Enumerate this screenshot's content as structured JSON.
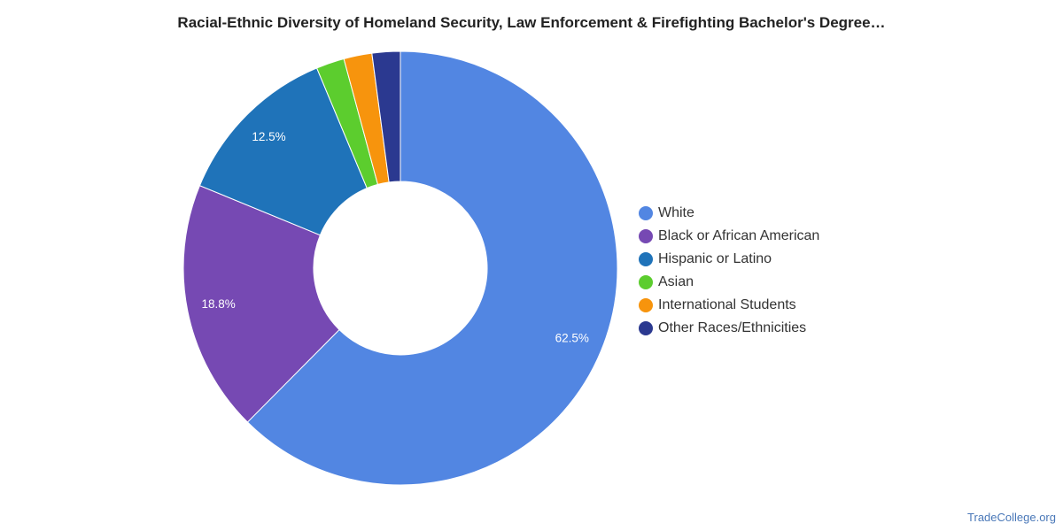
{
  "chart_data": {
    "type": "pie",
    "donut": true,
    "title": "Racial-Ethnic Diversity of Homeland Security, Law Enforcement & Firefighting Bachelor's Degree…",
    "legend_position": "right",
    "categories": [
      "White",
      "Black or African American",
      "Hispanic or Latino",
      "Asian",
      "International Students",
      "Other Races/Ethnicities"
    ],
    "values": [
      62.5,
      18.8,
      12.5,
      2.1,
      2.1,
      2.1
    ],
    "data_labels": [
      "62.5%",
      "18.8%",
      "12.5%",
      "",
      "",
      ""
    ],
    "colors": [
      "#5286e2",
      "#7649b3",
      "#1f73b9",
      "#5ccd2e",
      "#f7940d",
      "#2b3990"
    ]
  },
  "watermark": "TradeCollege.org"
}
